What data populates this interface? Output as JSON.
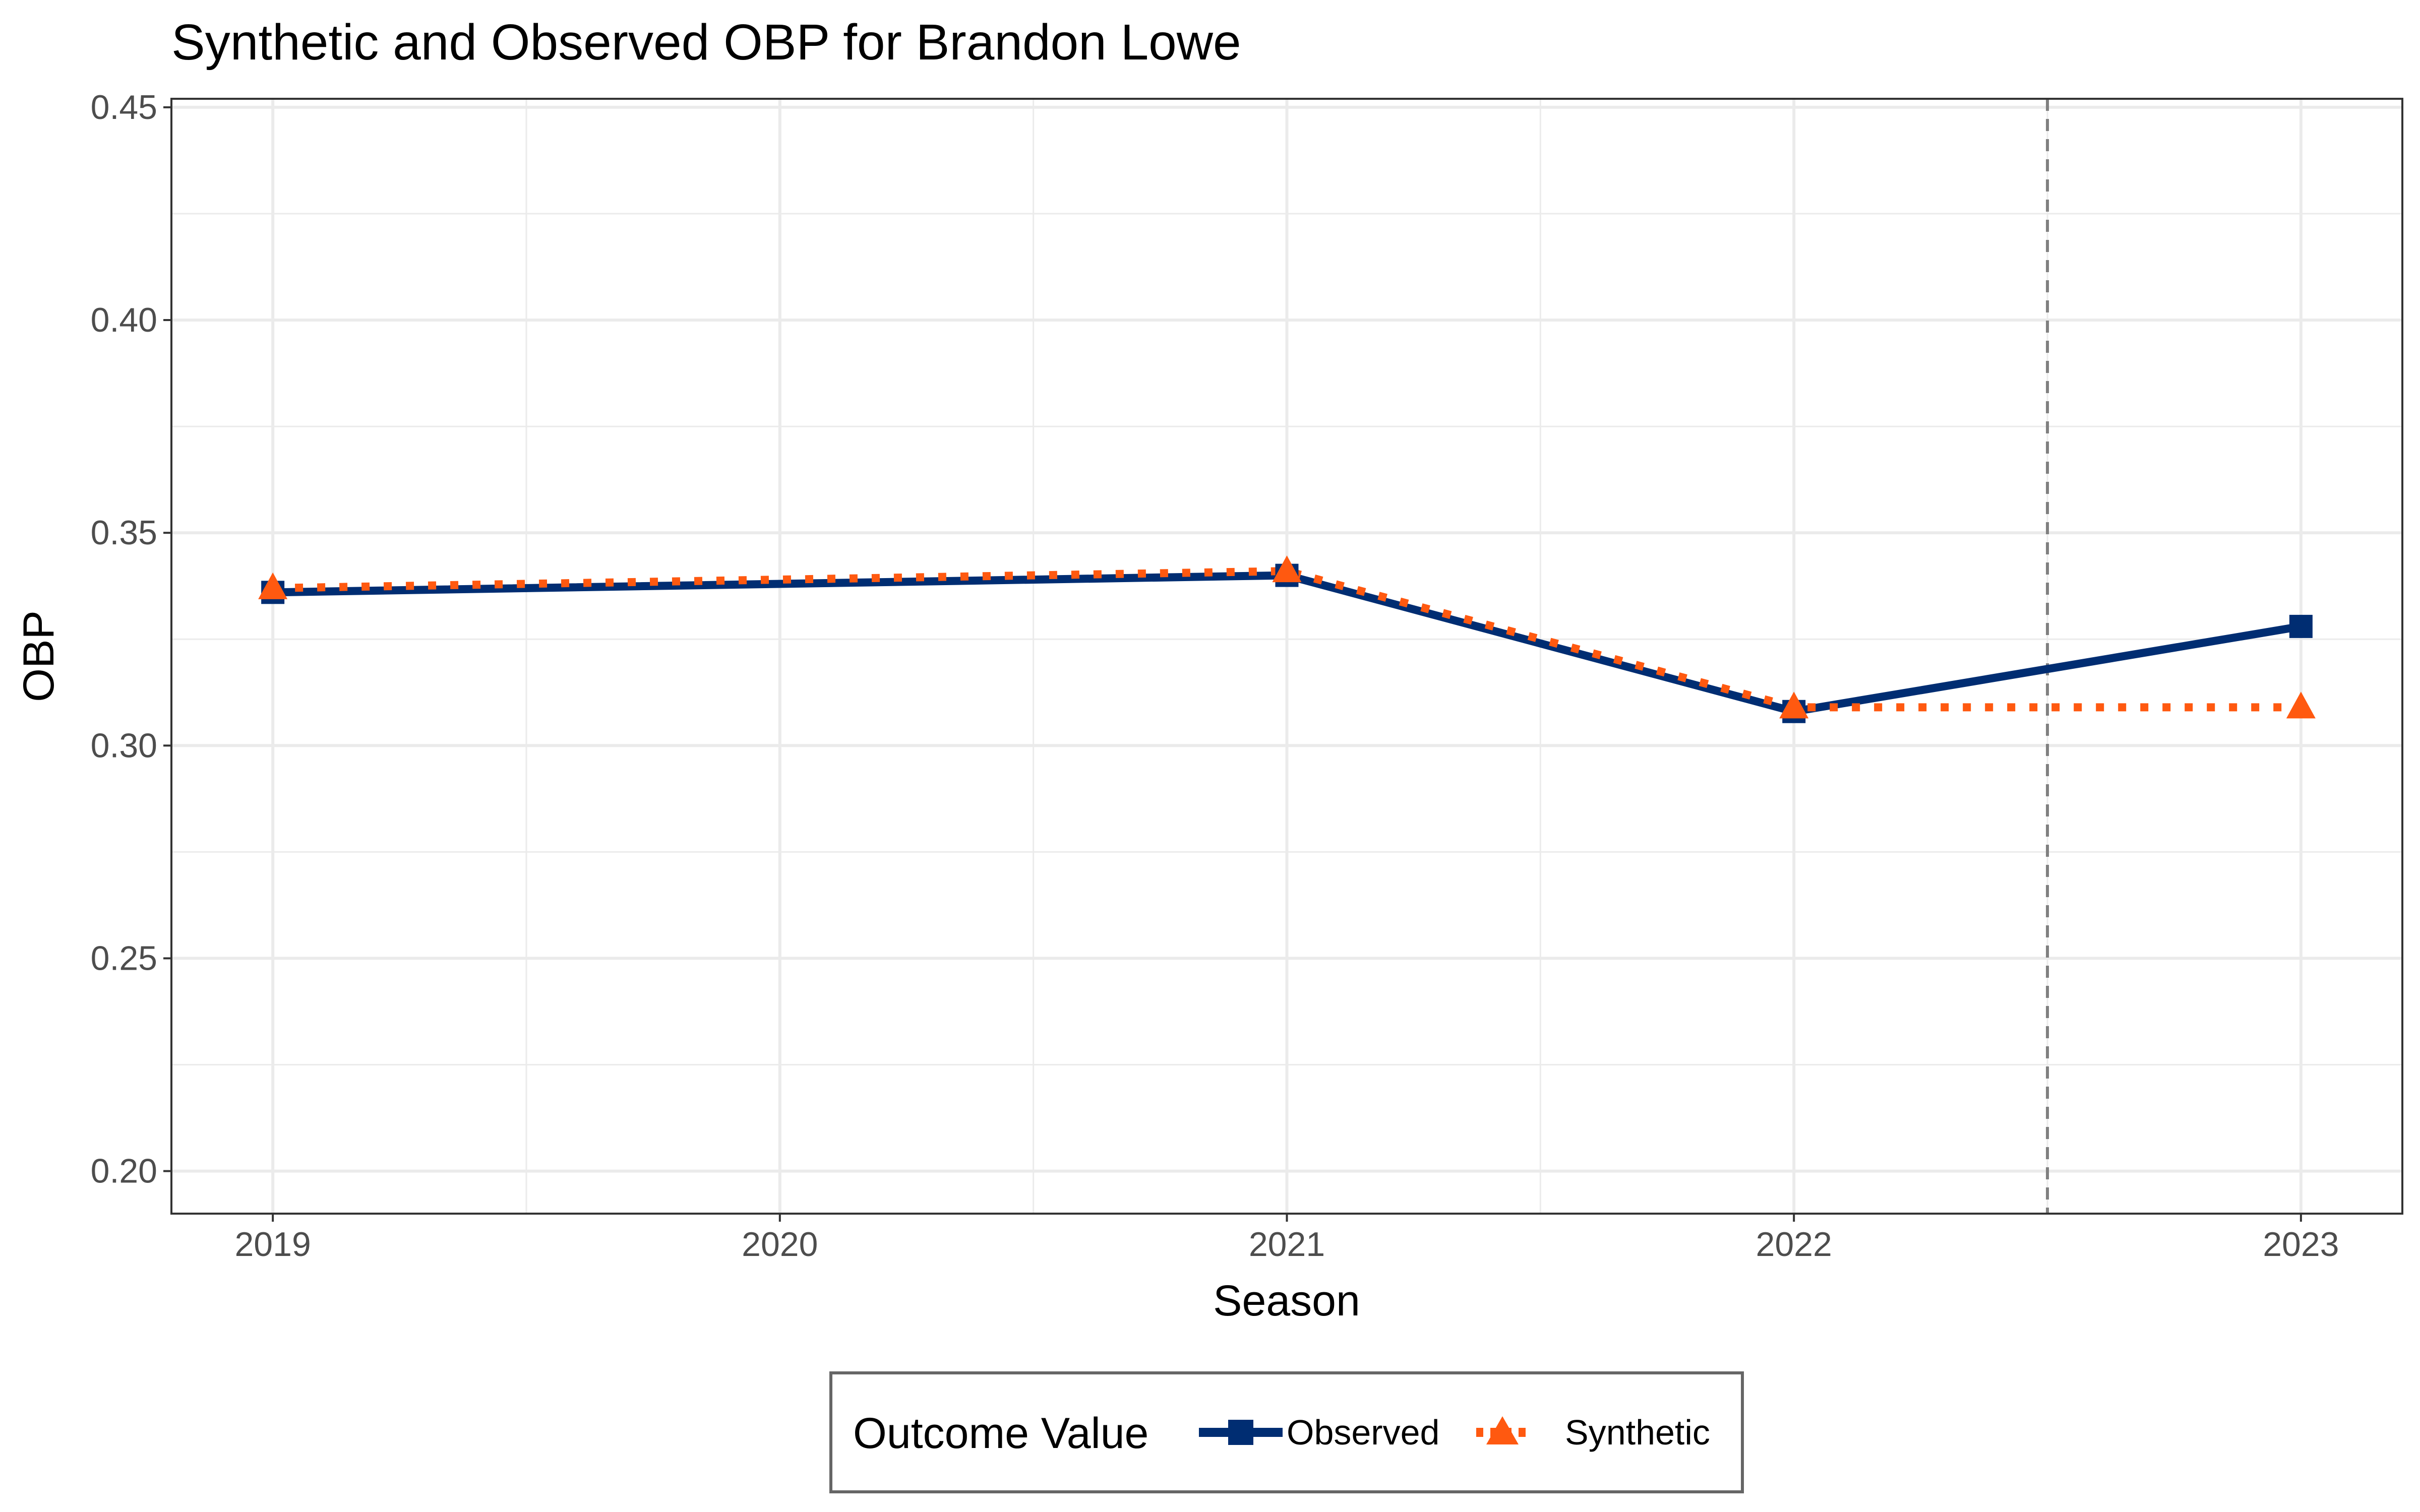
{
  "chart_data": {
    "type": "line",
    "title": "Synthetic and Observed OBP for Brandon Lowe",
    "xlabel": "Season",
    "ylabel": "OBP",
    "x": [
      2019,
      2020,
      2021,
      2022,
      2023
    ],
    "x_tick_labels": [
      "2019",
      "2020",
      "2021",
      "2022",
      "2023"
    ],
    "xlim": [
      2018.8,
      2023.2
    ],
    "ylim": [
      0.19,
      0.452
    ],
    "y_ticks": [
      0.2,
      0.25,
      0.3,
      0.35,
      0.4,
      0.45
    ],
    "y_tick_labels": [
      "0.20",
      "0.25",
      "0.30",
      "0.35",
      "0.40",
      "0.45"
    ],
    "treatment_line_x": 2022.5,
    "grid": true,
    "legend_position": "bottom",
    "legend_title": "Outcome Value",
    "series": [
      {
        "name": "Observed",
        "x": [
          2019,
          2021,
          2022,
          2023
        ],
        "values": [
          0.336,
          0.34,
          0.308,
          0.328
        ],
        "color": "#002d72",
        "marker": "square",
        "line_style": "solid"
      },
      {
        "name": "Synthetic",
        "x": [
          2019,
          2021,
          2022,
          2023
        ],
        "values": [
          0.337,
          0.341,
          0.309,
          0.309
        ],
        "color": "#ff5910",
        "marker": "triangle",
        "line_style": "dotted"
      }
    ]
  },
  "colors": {
    "background": "#ffffff",
    "grid": "#ebebeb",
    "panel_border": "#333333",
    "treatment_line": "#808080"
  }
}
